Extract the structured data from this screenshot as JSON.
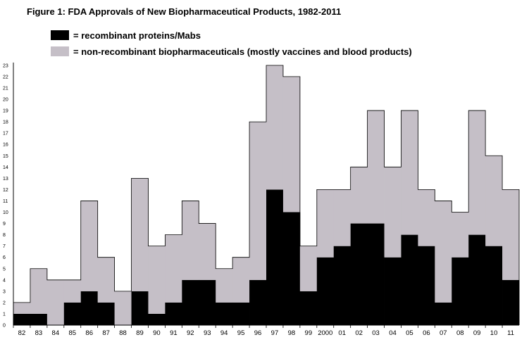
{
  "chart_data": {
    "type": "bar",
    "stacked": true,
    "title": "Figure 1:  FDA Approvals of New Biopharmaceutical Products, 1982-2011",
    "categories": [
      "82",
      "83",
      "84",
      "85",
      "86",
      "87",
      "88",
      "89",
      "90",
      "91",
      "92",
      "93",
      "94",
      "95",
      "96",
      "97",
      "98",
      "99",
      "2000",
      "01",
      "02",
      "03",
      "04",
      "05",
      "06",
      "07",
      "08",
      "09",
      "10",
      "11"
    ],
    "series": [
      {
        "name": "= recombinant proteins/Mabs",
        "color": "#000000",
        "values": [
          1,
          1,
          0,
          2,
          3,
          2,
          0,
          3,
          1,
          2,
          4,
          4,
          2,
          2,
          4,
          12,
          10,
          3,
          6,
          7,
          9,
          9,
          6,
          8,
          7,
          2,
          6,
          8,
          7,
          4
        ]
      },
      {
        "name": "= non-recombinant biopharmaceuticals (mostly vaccines and blood products)",
        "color": "#c5bfc7",
        "values": [
          1,
          4,
          4,
          2,
          8,
          4,
          3,
          10,
          6,
          6,
          7,
          5,
          3,
          4,
          14,
          11,
          12,
          4,
          6,
          5,
          5,
          10,
          8,
          11,
          5,
          9,
          4,
          11,
          8,
          8
        ]
      }
    ],
    "totals": [
      2,
      5,
      4,
      4,
      11,
      6,
      3,
      13,
      7,
      8,
      11,
      9,
      5,
      6,
      18,
      23,
      22,
      7,
      12,
      12,
      14,
      19,
      14,
      19,
      12,
      11,
      10,
      19,
      15,
      12
    ],
    "yticks": [
      "0",
      "1",
      "2",
      "3",
      "4",
      "5",
      "6",
      "7",
      "8",
      "9",
      "10",
      "11",
      "12",
      "13",
      "14",
      "15",
      "16",
      "17",
      "18",
      "19",
      "20",
      "21",
      "22",
      "23"
    ],
    "ylim": [
      0,
      23
    ],
    "xlabel": "",
    "ylabel": "",
    "grid": false,
    "legend": "top"
  }
}
